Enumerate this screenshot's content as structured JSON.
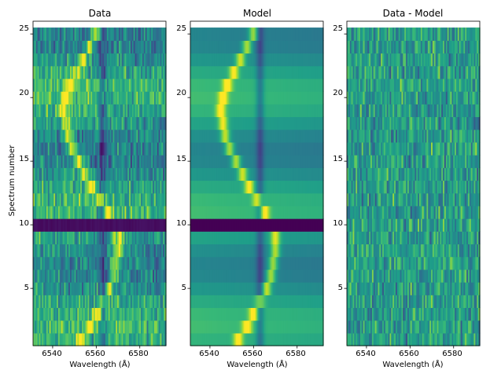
{
  "chart_data": [
    {
      "type": "heatmap",
      "title": "Data",
      "xlabel": "Wavelength (Å)",
      "ylabel": "Spectrum number",
      "xticks": [
        "6540",
        "6560",
        "6580"
      ],
      "yticks": [
        "5",
        "10",
        "15",
        "20",
        "25"
      ],
      "xlim": [
        6531,
        6592
      ],
      "ylim": [
        0.5,
        26
      ],
      "colormap": "viridis",
      "color_range": [
        0.0,
        1.0
      ],
      "rows": 25,
      "cols": 90,
      "masked_spectrum": 10,
      "absorption_line_center": 6563,
      "emission_peak_wavelengths": [
        6553,
        6557,
        6560,
        6563,
        6566,
        6568,
        6569,
        6570,
        6570,
        6568,
        6565,
        6562,
        6558,
        6555,
        6552,
        6549,
        6547,
        6546,
        6545,
        6546,
        6548,
        6551,
        6554,
        6557,
        6560
      ],
      "noise_level": 0.2
    },
    {
      "type": "heatmap",
      "title": "Model",
      "xlabel": "Wavelength (Å)",
      "ylabel": "",
      "xticks": [
        "6540",
        "6560",
        "6580"
      ],
      "yticks": [
        "5",
        "10",
        "15",
        "20",
        "25"
      ],
      "xlim": [
        6531,
        6592
      ],
      "ylim": [
        0.5,
        26
      ],
      "colormap": "viridis",
      "color_range": [
        0.0,
        1.0
      ],
      "rows": 25,
      "cols": 90,
      "masked_spectrum": 10,
      "absorption_line_center": 6563,
      "emission_peak_wavelengths": [
        6553,
        6557,
        6560,
        6563,
        6566,
        6568,
        6569,
        6570,
        6570,
        6568,
        6565,
        6562,
        6558,
        6555,
        6552,
        6549,
        6547,
        6546,
        6545,
        6546,
        6548,
        6551,
        6554,
        6557,
        6560
      ],
      "noise_level": 0.0
    },
    {
      "type": "heatmap",
      "title": "Data - Model",
      "xlabel": "Wavelength (Å)",
      "ylabel": "",
      "xticks": [
        "6540",
        "6560",
        "6580"
      ],
      "yticks": [
        "5",
        "10",
        "15",
        "20",
        "25"
      ],
      "xlim": [
        6531,
        6592
      ],
      "ylim": [
        0.5,
        26
      ],
      "colormap": "viridis",
      "color_range": [
        0.0,
        1.0
      ],
      "rows": 25,
      "cols": 90,
      "residual_mean": 0.55,
      "noise_level": 0.22
    }
  ]
}
